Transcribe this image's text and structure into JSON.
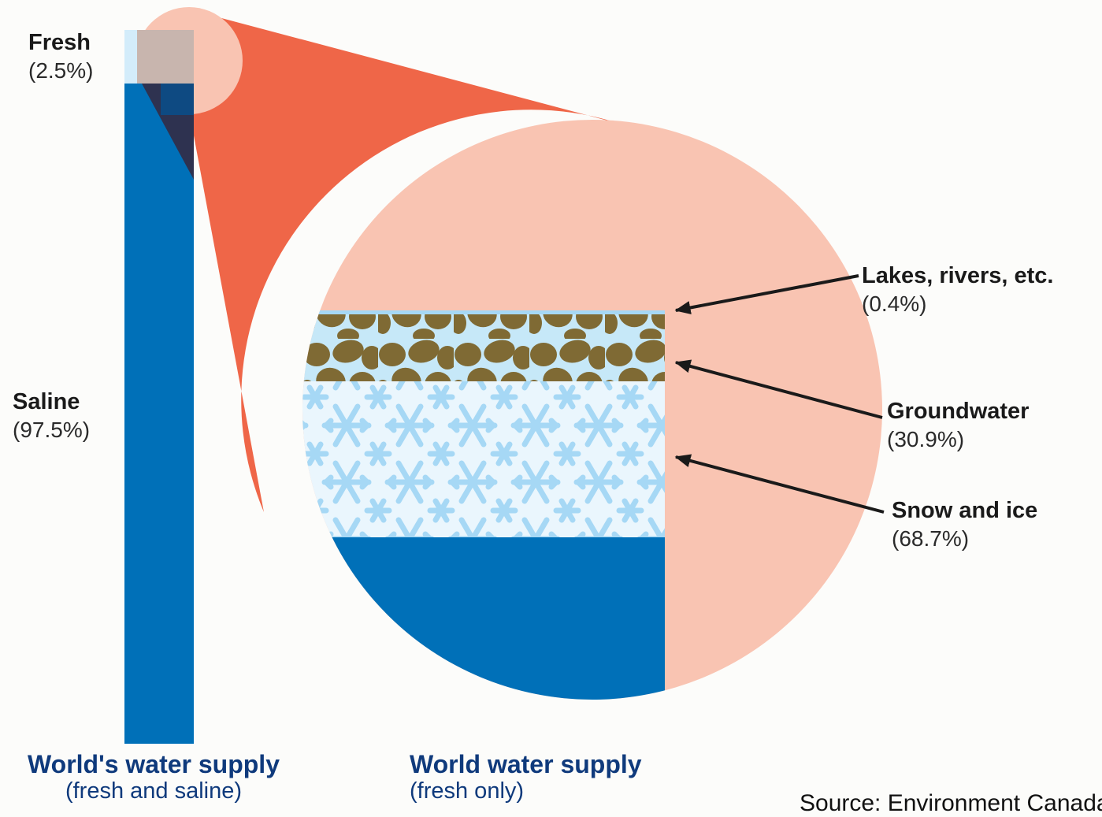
{
  "bar": {
    "fresh": {
      "label": "Fresh",
      "percent": "(2.5%)",
      "value": 2.5,
      "color": "#d3ecfa"
    },
    "saline": {
      "label": "Saline",
      "percent": "(97.5%)",
      "value": 97.5,
      "color": "#0070b8"
    },
    "caption": {
      "title": "World's water supply",
      "subtitle": "(fresh and saline)"
    }
  },
  "zoom": {
    "caption": {
      "title": "World water supply",
      "subtitle": "(fresh only)"
    },
    "components": [
      {
        "label": "Lakes, rivers, etc.",
        "percent": "(0.4%)",
        "value": 0.4,
        "fill": "light-blue-band"
      },
      {
        "label": "Groundwater",
        "percent": "(30.9%)",
        "value": 30.9,
        "fill": "rocks-pattern"
      },
      {
        "label": "Snow and ice",
        "percent": "(68.7%)",
        "value": 68.7,
        "fill": "snowflake-pattern"
      }
    ]
  },
  "colors": {
    "funnel": "#ef6648",
    "bubble": "#f9c4b2",
    "water": "#0070b8",
    "ice_bg": "#eaf6fd",
    "snowflake": "#a6d8f5",
    "rock": "#7f6a34",
    "arrow": "#1a1a1a"
  },
  "source": "Source: Environment Canada"
}
